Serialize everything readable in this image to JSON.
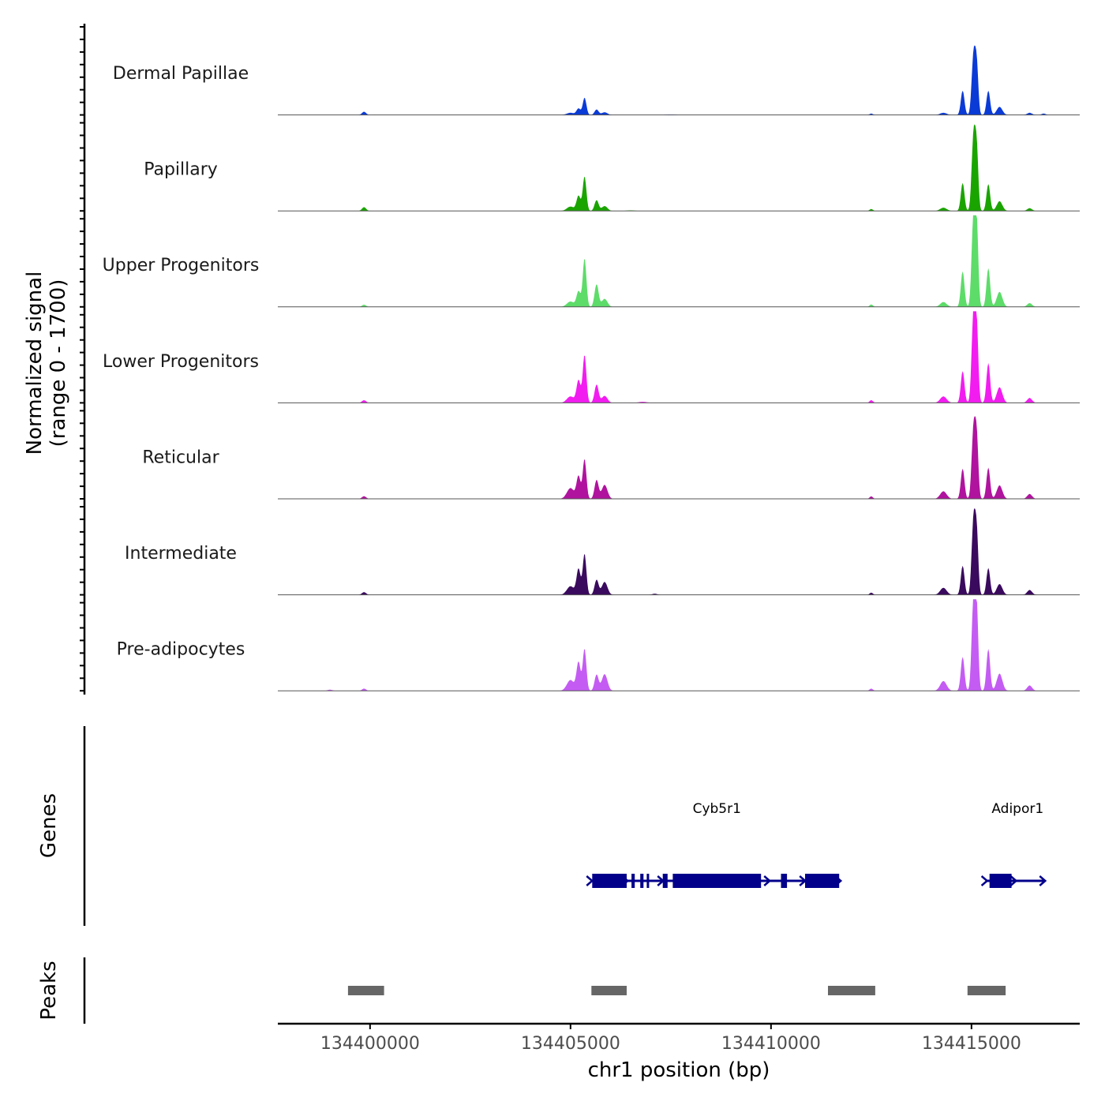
{
  "chart_data": {
    "type": "area",
    "title": "",
    "xlabel": "chr1 position (bp)",
    "ylabel_line1": "Normalized signal",
    "ylabel_line2": "(range 0 - 1700)",
    "genes_label": "Genes",
    "peaks_label": "Peaks",
    "xlim": [
      134397700,
      134417700
    ],
    "ylim": [
      0,
      1700
    ],
    "x_ticks": [
      134400000,
      134405000,
      134410000,
      134415000
    ],
    "x_tick_labels": [
      "134400000",
      "134405000",
      "134410000",
      "134415000"
    ],
    "tracks": [
      {
        "name": "Dermal Papillae",
        "color": "#0b3bd6",
        "peaks": [
          [
            134399850,
            60,
            50
          ],
          [
            134405000,
            40,
            90
          ],
          [
            134405200,
            120,
            50
          ],
          [
            134405350,
            320,
            45
          ],
          [
            134405650,
            100,
            50
          ],
          [
            134405850,
            50,
            70
          ],
          [
            134407500,
            8,
            100
          ],
          [
            134412500,
            25,
            40
          ],
          [
            134414300,
            40,
            80
          ],
          [
            134414780,
            450,
            45
          ],
          [
            134415050,
            1100,
            45
          ],
          [
            134415130,
            900,
            40
          ],
          [
            134415420,
            450,
            45
          ],
          [
            134415700,
            150,
            70
          ],
          [
            134416450,
            40,
            60
          ],
          [
            134416800,
            25,
            50
          ]
        ]
      },
      {
        "name": "Papillary",
        "color": "#1aa400",
        "peaks": [
          [
            134399850,
            70,
            50
          ],
          [
            134405000,
            80,
            90
          ],
          [
            134405200,
            280,
            50
          ],
          [
            134405350,
            640,
            45
          ],
          [
            134405650,
            200,
            50
          ],
          [
            134405850,
            90,
            70
          ],
          [
            134406500,
            10,
            100
          ],
          [
            134412500,
            35,
            40
          ],
          [
            134414300,
            60,
            80
          ],
          [
            134414780,
            520,
            45
          ],
          [
            134415050,
            1380,
            45
          ],
          [
            134415130,
            1100,
            40
          ],
          [
            134415420,
            500,
            45
          ],
          [
            134415700,
            180,
            70
          ],
          [
            134416450,
            50,
            60
          ]
        ]
      },
      {
        "name": "Upper Progenitors",
        "color": "#5ddc6a",
        "peaks": [
          [
            134399850,
            40,
            50
          ],
          [
            134405000,
            100,
            90
          ],
          [
            134405200,
            290,
            50
          ],
          [
            134405350,
            900,
            45
          ],
          [
            134405650,
            420,
            50
          ],
          [
            134405850,
            150,
            70
          ],
          [
            134412500,
            45,
            40
          ],
          [
            134414300,
            90,
            80
          ],
          [
            134414780,
            660,
            45
          ],
          [
            134415050,
            1700,
            45
          ],
          [
            134415130,
            1450,
            40
          ],
          [
            134415420,
            720,
            45
          ],
          [
            134415700,
            280,
            70
          ],
          [
            134416450,
            70,
            60
          ]
        ]
      },
      {
        "name": "Lower Progenitors",
        "color": "#f21cf0",
        "peaks": [
          [
            134399850,
            50,
            50
          ],
          [
            134405000,
            120,
            90
          ],
          [
            134405200,
            420,
            50
          ],
          [
            134405350,
            890,
            45
          ],
          [
            134405650,
            340,
            50
          ],
          [
            134405850,
            130,
            70
          ],
          [
            134406800,
            20,
            100
          ],
          [
            134412500,
            50,
            40
          ],
          [
            134414300,
            120,
            80
          ],
          [
            134414780,
            590,
            45
          ],
          [
            134415050,
            1660,
            45
          ],
          [
            134415130,
            1350,
            40
          ],
          [
            134415420,
            740,
            45
          ],
          [
            134415700,
            290,
            70
          ],
          [
            134416450,
            90,
            60
          ]
        ]
      },
      {
        "name": "Reticular",
        "color": "#b0139e",
        "peaks": [
          [
            134399850,
            50,
            50
          ],
          [
            134405000,
            200,
            90
          ],
          [
            134405200,
            420,
            50
          ],
          [
            134405350,
            740,
            45
          ],
          [
            134405650,
            350,
            50
          ],
          [
            134405850,
            260,
            70
          ],
          [
            134412500,
            45,
            40
          ],
          [
            134414300,
            140,
            80
          ],
          [
            134414780,
            560,
            45
          ],
          [
            134415050,
            1290,
            45
          ],
          [
            134415130,
            1100,
            40
          ],
          [
            134415420,
            580,
            45
          ],
          [
            134415700,
            250,
            70
          ],
          [
            134416450,
            90,
            60
          ]
        ]
      },
      {
        "name": "Intermediate",
        "color": "#3a0a5e",
        "peaks": [
          [
            134399850,
            50,
            50
          ],
          [
            134405000,
            160,
            90
          ],
          [
            134405200,
            480,
            50
          ],
          [
            134405350,
            760,
            45
          ],
          [
            134405650,
            280,
            50
          ],
          [
            134405850,
            240,
            70
          ],
          [
            134407100,
            20,
            60
          ],
          [
            134412500,
            40,
            40
          ],
          [
            134414300,
            130,
            80
          ],
          [
            134414780,
            540,
            45
          ],
          [
            134415050,
            1380,
            45
          ],
          [
            134415130,
            1100,
            40
          ],
          [
            134415420,
            500,
            45
          ],
          [
            134415700,
            200,
            70
          ],
          [
            134416450,
            90,
            60
          ]
        ]
      },
      {
        "name": "Pre-adipocytes",
        "color": "#c45cf3",
        "peaks": [
          [
            134399000,
            20,
            60
          ],
          [
            134399850,
            40,
            50
          ],
          [
            134405000,
            200,
            90
          ],
          [
            134405200,
            530,
            50
          ],
          [
            134405350,
            780,
            45
          ],
          [
            134405650,
            300,
            50
          ],
          [
            134405850,
            310,
            70
          ],
          [
            134412500,
            40,
            40
          ],
          [
            134414300,
            180,
            80
          ],
          [
            134414780,
            630,
            45
          ],
          [
            134415050,
            1700,
            45
          ],
          [
            134415130,
            1450,
            40
          ],
          [
            134415420,
            780,
            45
          ],
          [
            134415700,
            320,
            70
          ],
          [
            134416450,
            100,
            60
          ]
        ]
      }
    ],
    "genes": [
      {
        "name": "Cyb5r1",
        "start": 134405500,
        "end": 134411700,
        "label_x": 134408650,
        "color": "#02008b",
        "exons": [
          [
            134405540,
            134406400
          ],
          [
            134406520,
            134406600
          ],
          [
            134406740,
            134406820
          ],
          [
            134406900,
            134406960
          ],
          [
            134407300,
            134407420
          ],
          [
            134407550,
            134409750
          ],
          [
            134410250,
            134410400
          ],
          [
            134410850,
            134411700
          ]
        ]
      },
      {
        "name": "Adipor1",
        "start": 134415350,
        "end": 134416800,
        "label_x": 134416150,
        "color": "#02008b",
        "exons": [
          [
            134415450,
            134416000
          ]
        ]
      }
    ],
    "peak_regions": [
      [
        134399450,
        134400350
      ],
      [
        134405520,
        134406400
      ],
      [
        134411420,
        134412600
      ],
      [
        134414900,
        134415850
      ]
    ]
  }
}
